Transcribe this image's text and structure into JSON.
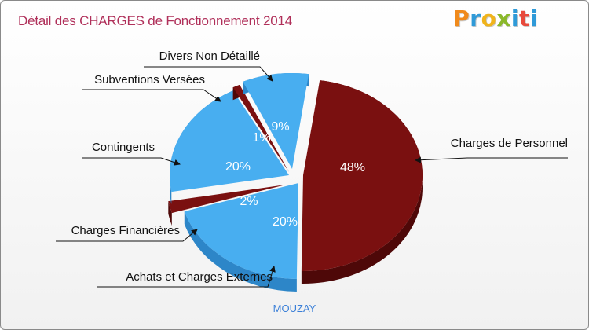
{
  "header": {
    "title": "Détail des CHARGES de Fonctionnement 2014",
    "logo": "Proxiti"
  },
  "footer": {
    "city": "MOUZAY"
  },
  "chart_data": {
    "type": "pie",
    "title": "Détail des CHARGES de Fonctionnement 2014",
    "colors": {
      "red": "#7a1010",
      "blue": "#48aef0"
    },
    "slices": [
      {
        "label": "Charges de Personnel",
        "value": 48,
        "pct_text": "48%",
        "color": "red"
      },
      {
        "label": "Achats et Charges Externes",
        "value": 20,
        "pct_text": "20%",
        "color": "blue"
      },
      {
        "label": "Charges Financières",
        "value": 2,
        "pct_text": "2%",
        "color": "red"
      },
      {
        "label": "Contingents",
        "value": 20,
        "pct_text": "20%",
        "color": "blue"
      },
      {
        "label": "Subventions Versées",
        "value": 1,
        "pct_text": "1%",
        "color": "red"
      },
      {
        "label": "Divers Non Détaillé",
        "value": 9,
        "pct_text": "9%",
        "color": "blue"
      }
    ]
  }
}
